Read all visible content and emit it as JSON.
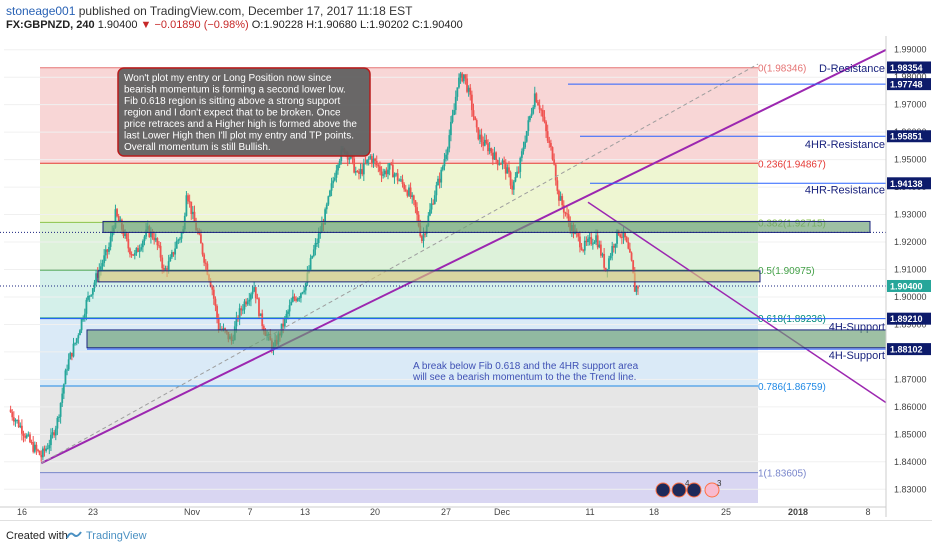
{
  "header": {
    "author": "stoneage001",
    "published_text": "published on TradingView.com, December 17, 2017 11:18 EST",
    "symbol": "FX:GBPNZD, 240",
    "last": "1.90400",
    "change": "▼ −0.01890 (−0.98%)",
    "ohlc": "O:1.90228 H:1.90680 L:1.90202 C:1.90400"
  },
  "footer": {
    "created_with": "Created with",
    "brand": "TradingView"
  },
  "colors": {
    "up": "#26a69a",
    "down": "#ef5350",
    "trend": "#9c27b0",
    "level": "#2962ff",
    "price_label": "#0d1b6b"
  },
  "chart_data": {
    "type": "candlestick",
    "title": "",
    "symbol": "FX:GBPNZD",
    "interval": "240",
    "ylim": [
      1.825,
      1.995
    ],
    "y_ticks": [
      "1.99000",
      "1.98000",
      "1.97000",
      "1.96000",
      "1.95000",
      "1.94000",
      "1.93000",
      "1.92000",
      "1.91000",
      "1.90000",
      "1.89000",
      "1.88000",
      "1.87000",
      "1.86000",
      "1.85000",
      "1.84000",
      "1.83000"
    ],
    "x_ticks": [
      "16",
      "23",
      "Nov",
      "7",
      "13",
      "20",
      "27",
      "Dec",
      "11",
      "18",
      "25",
      "2018",
      "8"
    ],
    "price_path": [
      [
        0,
        1.859
      ],
      [
        8,
        1.852
      ],
      [
        14,
        1.846
      ],
      [
        20,
        1.842
      ],
      [
        26,
        1.848
      ],
      [
        30,
        1.855
      ],
      [
        36,
        1.875
      ],
      [
        42,
        1.885
      ],
      [
        48,
        1.898
      ],
      [
        52,
        1.904
      ],
      [
        56,
        1.91
      ],
      [
        62,
        1.918
      ],
      [
        66,
        1.93
      ],
      [
        70,
        1.925
      ],
      [
        74,
        1.918
      ],
      [
        78,
        1.915
      ],
      [
        82,
        1.92
      ],
      [
        86,
        1.924
      ],
      [
        90,
        1.922
      ],
      [
        94,
        1.915
      ],
      [
        96,
        1.909
      ],
      [
        100,
        1.913
      ],
      [
        104,
        1.92
      ],
      [
        108,
        1.924
      ],
      [
        110,
        1.939
      ],
      [
        114,
        1.929
      ],
      [
        118,
        1.921
      ],
      [
        122,
        1.912
      ],
      [
        126,
        1.903
      ],
      [
        130,
        1.889
      ],
      [
        134,
        1.887
      ],
      [
        138,
        1.884
      ],
      [
        142,
        1.893
      ],
      [
        146,
        1.898
      ],
      [
        150,
        1.902
      ],
      [
        152,
        1.904
      ],
      [
        156,
        1.892
      ],
      [
        160,
        1.886
      ],
      [
        164,
        1.881
      ],
      [
        168,
        1.887
      ],
      [
        172,
        1.893
      ],
      [
        176,
        1.899
      ],
      [
        180,
        1.901
      ],
      [
        184,
        1.905
      ],
      [
        188,
        1.915
      ],
      [
        192,
        1.922
      ],
      [
        196,
        1.93
      ],
      [
        200,
        1.94
      ],
      [
        204,
        1.95
      ],
      [
        208,
        1.954
      ],
      [
        212,
        1.95
      ],
      [
        216,
        1.944
      ],
      [
        220,
        1.947
      ],
      [
        224,
        1.951
      ],
      [
        228,
        1.948
      ],
      [
        232,
        1.945
      ],
      [
        236,
        1.947
      ],
      [
        240,
        1.944
      ],
      [
        244,
        1.941
      ],
      [
        248,
        1.938
      ],
      [
        252,
        1.932
      ],
      [
        256,
        1.921
      ],
      [
        260,
        1.929
      ],
      [
        264,
        1.938
      ],
      [
        268,
        1.945
      ],
      [
        272,
        1.956
      ],
      [
        276,
        1.968
      ],
      [
        278,
        1.978
      ],
      [
        282,
        1.981
      ],
      [
        286,
        1.972
      ],
      [
        290,
        1.96
      ],
      [
        294,
        1.956
      ],
      [
        298,
        1.954
      ],
      [
        302,
        1.95
      ],
      [
        306,
        1.949
      ],
      [
        310,
        1.944
      ],
      [
        312,
        1.94
      ],
      [
        316,
        1.946
      ],
      [
        320,
        1.958
      ],
      [
        324,
        1.968
      ],
      [
        326,
        1.974
      ],
      [
        330,
        1.968
      ],
      [
        334,
        1.957
      ],
      [
        338,
        1.95
      ],
      [
        340,
        1.938
      ],
      [
        344,
        1.932
      ],
      [
        348,
        1.926
      ],
      [
        352,
        1.922
      ],
      [
        356,
        1.918
      ],
      [
        360,
        1.92
      ],
      [
        364,
        1.922
      ],
      [
        368,
        1.914
      ],
      [
        370,
        1.91
      ],
      [
        374,
        1.918
      ],
      [
        378,
        1.924
      ],
      [
        382,
        1.921
      ],
      [
        386,
        1.912
      ],
      [
        388,
        1.903
      ],
      [
        390,
        1.904
      ]
    ],
    "fib_retracement": [
      {
        "ratio": "0",
        "price": 1.98346,
        "label": "0(1.98346)",
        "color": "#e57373"
      },
      {
        "ratio": "0.236",
        "price": 1.94867,
        "label": "0.236(1.94867)",
        "color": "#e53935"
      },
      {
        "ratio": "0.382",
        "price": 1.92715,
        "label": "0.382(1.92715)",
        "color": "#8bc34a"
      },
      {
        "ratio": "0.5",
        "price": 1.90975,
        "label": "0.5(1.90975)",
        "color": "#43a047"
      },
      {
        "ratio": "0.618",
        "price": 1.89236,
        "label": "0.618(1.89236)",
        "color": "#00897b"
      },
      {
        "ratio": "0.786",
        "price": 1.86759,
        "label": "0.786(1.86759)",
        "color": "#1e88e5"
      },
      {
        "ratio": "1",
        "price": 1.83605,
        "label": "1(1.83605)",
        "color": "#7986cb"
      }
    ],
    "fib_zone_fills": [
      "#f8d6d6",
      "#eef6d2",
      "#ddf2da",
      "#d4f0ea",
      "#daeaf7",
      "#e6e6e6"
    ],
    "fib_zone_bottom_fill": "#d9d6f2",
    "levels": [
      {
        "label": "D-Resistance",
        "price": 1.97748
      },
      {
        "label": "4HR-Resistance",
        "price": 1.95851
      },
      {
        "label": "4HR-Resistance",
        "price": 1.94138
      },
      {
        "label": "4H-Support",
        "price": 1.8921
      },
      {
        "label": "4H-Support",
        "price": 1.88102
      }
    ],
    "price_axis_labels": [
      {
        "text": "1.98354",
        "price": 1.98354,
        "bg": "#0d1b6b",
        "fg": "#ffffff"
      },
      {
        "text": "1.97748",
        "price": 1.97748,
        "bg": "#0d1b6b",
        "fg": "#ffffff"
      },
      {
        "text": "1.95851",
        "price": 1.95851,
        "bg": "#0d1b6b",
        "fg": "#ffffff"
      },
      {
        "text": "1.94138",
        "price": 1.94138,
        "bg": "#0d1b6b",
        "fg": "#ffffff"
      },
      {
        "text": "1.90400",
        "price": 1.904,
        "bg": "#26a69a",
        "fg": "#ffffff"
      },
      {
        "text": "1.89210",
        "price": 1.8921,
        "bg": "#0d1b6b",
        "fg": "#ffffff"
      },
      {
        "text": "1.88102",
        "price": 1.88102,
        "bg": "#0d1b6b",
        "fg": "#ffffff"
      }
    ],
    "zones": [
      {
        "name": "zone-0.382",
        "top": 1.9275,
        "bottom": 1.9235,
        "fill": "#6a9e73"
      },
      {
        "name": "zone-0.5",
        "top": 1.9095,
        "bottom": 1.9055,
        "fill": "#d9c77a"
      },
      {
        "name": "zone-4h-support",
        "top": 1.888,
        "bottom": 1.8815,
        "fill": "#6a9e73"
      }
    ],
    "annotations": {
      "box_lines": [
        "Won't plot my entry or Long Position now since",
        "bearish momentum is forming a second lower low.",
        "Fib 0.618 region is sitting above a strong support",
        "region and I don't expect that to be broken. Once",
        "price retraces and a Higher high is formed above the",
        "last Lower High then I'll plot my  entry and TP points.",
        "Overall momentum is still Bullish."
      ],
      "note_lines": [
        "A break below Fib 0.618 and the 4HR support area",
        "will see a bearish momentum to the the Trend line."
      ]
    },
    "event_badges": [
      "4",
      "3"
    ]
  }
}
